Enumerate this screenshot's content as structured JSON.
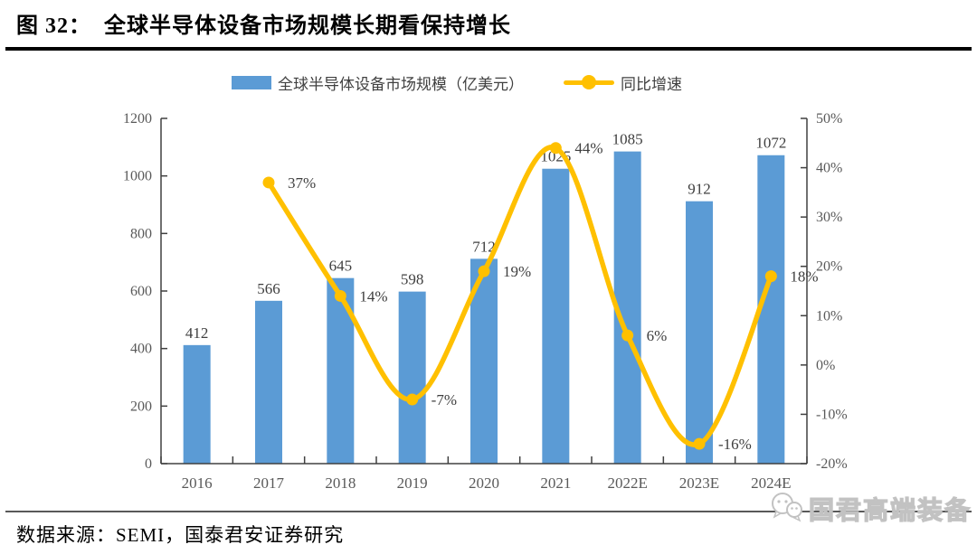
{
  "figure": {
    "title_prefix": "图 32：",
    "title": "全球半导体设备市场规模长期看保持增长",
    "source": "数据来源：SEMI，国泰君安证券研究",
    "watermark": "国君高端装备"
  },
  "legend": {
    "bars_label": "全球半导体设备市场规模（亿美元）",
    "line_label": "同比增速"
  },
  "colors": {
    "bar": "#5B9BD5",
    "line": "#FFC000",
    "axis_line": "#404040",
    "axis_text": "#595959",
    "data_label": "#3F3F3F"
  },
  "chart_data": {
    "type": "bar",
    "subtype": "combo-bar-line",
    "categories": [
      "2016",
      "2017",
      "2018",
      "2019",
      "2020",
      "2021",
      "2022E",
      "2023E",
      "2024E"
    ],
    "series": [
      {
        "name": "全球半导体设备市场规模（亿美元）",
        "type": "bar",
        "axis": "left",
        "values": [
          412,
          566,
          645,
          598,
          712,
          1025,
          1085,
          912,
          1072
        ],
        "labels": [
          "412",
          "566",
          "645",
          "598",
          "712",
          "1025",
          "1085",
          "912",
          "1072"
        ]
      },
      {
        "name": "同比增速",
        "type": "line",
        "axis": "right",
        "smooth": true,
        "values": [
          null,
          0.37,
          0.14,
          -0.07,
          0.19,
          0.44,
          0.06,
          -0.16,
          0.18
        ],
        "labels": [
          null,
          "37%",
          "14%",
          "-7%",
          "19%",
          "44%",
          "6%",
          "-16%",
          "18%"
        ]
      }
    ],
    "left_axis": {
      "min": 0,
      "max": 1200,
      "step": 200,
      "ticks": [
        "0",
        "200",
        "400",
        "600",
        "800",
        "1000",
        "1200"
      ]
    },
    "right_axis": {
      "min": -0.2,
      "max": 0.5,
      "step": 0.1,
      "ticks": [
        "-20%",
        "-10%",
        "0%",
        "10%",
        "20%",
        "30%",
        "40%",
        "50%"
      ]
    },
    "grid": false,
    "legend_position": "top"
  }
}
